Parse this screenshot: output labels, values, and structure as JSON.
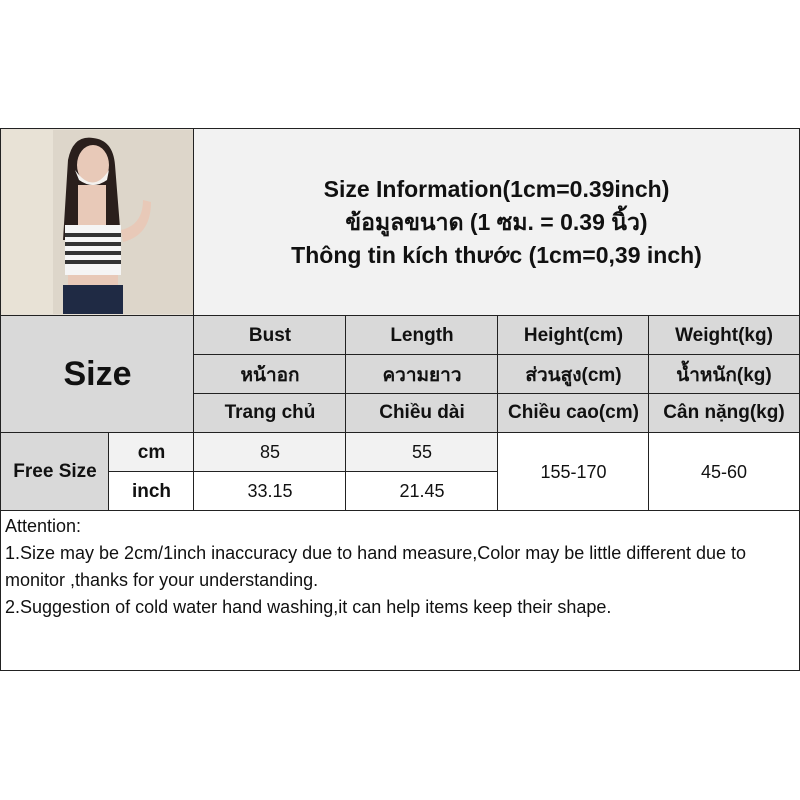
{
  "title": {
    "line1": "Size Information(1cm=0.39inch)",
    "line2": "ข้อมูลขนาด (1 ซม. = 0.39 นิ้ว)",
    "line3": "Thông tin kích thước (1cm=0,39 inch)"
  },
  "size_label": "Size",
  "headers": [
    {
      "en": "Bust",
      "th": "หน้าอก",
      "vi": "Trang chủ"
    },
    {
      "en": "Length",
      "th": "ความยาว",
      "vi": "Chiều dài"
    },
    {
      "en": "Height(cm)",
      "th": "ส่วนสูง(cm)",
      "vi": "Chiều cao(cm)"
    },
    {
      "en": "Weight(kg)",
      "th": "น้ำหนัก(kg)",
      "vi": "Cân nặng(kg)"
    }
  ],
  "row": {
    "size": "Free Size",
    "unit_cm": "cm",
    "unit_inch": "inch",
    "bust_cm": "85",
    "length_cm": "55",
    "bust_inch": "33.15",
    "length_inch": "21.45",
    "height": "155-170",
    "weight": "45-60"
  },
  "attention": {
    "heading": "Attention:",
    "line1": "1.Size may be 2cm/1inch inaccuracy due to hand measure,Color may be little different due to monitor ,thanks for your understanding.",
    "line2": "2.Suggestion of cold water hand washing,it can help items keep their shape."
  },
  "colors": {
    "header_bg": "#d9d9d9",
    "title_bg": "#f2f2f2",
    "border": "#222222"
  }
}
